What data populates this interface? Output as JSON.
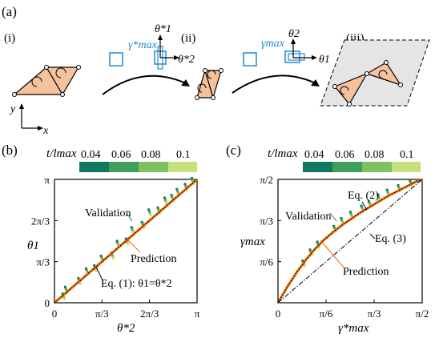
{
  "panel_labels": {
    "a": "(a)",
    "b": "(b)",
    "c": "(c)"
  },
  "panel_a": {
    "stage_labels": [
      "(i)",
      "(ii)",
      "(iii)"
    ],
    "gamma_star": "γ*max",
    "gamma": "γmax",
    "axis_theta1_star": "θ*1",
    "axis_theta2_star": "θ*2",
    "axis_theta2": "θ2",
    "axis_theta1": "θ1",
    "coord_y": "y",
    "coord_x": "x",
    "colors": {
      "tri": "#f5c29c",
      "grey": "#e5e5e5",
      "blue": "#1f8ad6"
    }
  },
  "colorbar": {
    "label": "t/lmax",
    "ticks": [
      "0.04",
      "0.06",
      "0.08",
      "0.1"
    ],
    "colors": [
      "#0f7a60",
      "#3e9e5a",
      "#7fc060",
      "#c5e27a"
    ]
  },
  "chart_data": [
    {
      "type": "line",
      "panel": "b",
      "xlabel": "θ*2",
      "ylabel": "θ1",
      "x_ticks": [
        "0",
        "π/3",
        "2π/3",
        "π"
      ],
      "y_ticks": [
        "0",
        "π/3",
        "2π/3",
        "π"
      ],
      "xlim": [
        0,
        3.1416
      ],
      "ylim": [
        0,
        3.1416
      ],
      "annotations": [
        "Validation",
        "Prediction",
        "Eq. (1): θ1=θ*2"
      ],
      "series": [
        {
          "name": "Prediction",
          "color": "#f26a00",
          "x": [
            0,
            3.1416
          ],
          "y": [
            0,
            3.1416
          ]
        },
        {
          "name": "Eq. (1)",
          "color": "#000000",
          "style": "dotted",
          "x": [
            0,
            3.1416
          ],
          "y": [
            0,
            3.1416
          ]
        }
      ],
      "validation_points": [
        {
          "x": 0.2,
          "y": 0.16
        },
        {
          "x": 0.26,
          "y": 0.33
        },
        {
          "x": 0.55,
          "y": 0.55
        },
        {
          "x": 0.72,
          "y": 0.8
        },
        {
          "x": 0.9,
          "y": 0.88
        },
        {
          "x": 1.05,
          "y": 1.12
        },
        {
          "x": 1.28,
          "y": 1.2
        },
        {
          "x": 1.4,
          "y": 1.5
        },
        {
          "x": 1.6,
          "y": 1.56
        },
        {
          "x": 1.72,
          "y": 1.85
        },
        {
          "x": 1.95,
          "y": 1.98
        },
        {
          "x": 2.1,
          "y": 2.3
        },
        {
          "x": 2.3,
          "y": 2.35
        },
        {
          "x": 2.45,
          "y": 2.6
        },
        {
          "x": 2.6,
          "y": 2.67
        },
        {
          "x": 2.72,
          "y": 2.82
        },
        {
          "x": 2.9,
          "y": 2.95
        },
        {
          "x": 3.05,
          "y": 3.1
        }
      ]
    },
    {
      "type": "line",
      "panel": "c",
      "xlabel": "γ*max",
      "ylabel": "γmax",
      "x_ticks": [
        "0",
        "π/6",
        "π/3",
        "π/2"
      ],
      "y_ticks": [
        "π/6",
        "π/3",
        "π/2"
      ],
      "xlim": [
        0,
        1.5708
      ],
      "ylim": [
        0,
        1.5708
      ],
      "annotations": [
        "Eq. (2)",
        "Validation",
        "Eq. (3)",
        "Prediction"
      ],
      "series": [
        {
          "name": "Prediction",
          "color": "#f26a00",
          "x": [
            0,
            0.1,
            0.2,
            0.3,
            0.4,
            0.5,
            0.6,
            0.7,
            0.8,
            0.9,
            1.0,
            1.1,
            1.2,
            1.3,
            1.4,
            1.5,
            1.5708
          ],
          "y": [
            0,
            0.2,
            0.38,
            0.54,
            0.68,
            0.8,
            0.9,
            0.99,
            1.07,
            1.15,
            1.22,
            1.29,
            1.36,
            1.42,
            1.48,
            1.54,
            1.5708
          ]
        },
        {
          "name": "Eq. (2)",
          "color": "#000000",
          "style": "dotted",
          "x": [
            0,
            0.1,
            0.2,
            0.3,
            0.4,
            0.5,
            0.6,
            0.7,
            0.8,
            0.9,
            1.0,
            1.1,
            1.2,
            1.3,
            1.4,
            1.5,
            1.5708
          ],
          "y": [
            0,
            0.2,
            0.38,
            0.54,
            0.68,
            0.8,
            0.9,
            0.99,
            1.07,
            1.15,
            1.22,
            1.29,
            1.36,
            1.42,
            1.48,
            1.54,
            1.5708
          ]
        },
        {
          "name": "Eq. (3)",
          "color": "#000000",
          "style": "dashdot",
          "x": [
            0,
            1.5708
          ],
          "y": [
            0,
            1.5708
          ]
        }
      ],
      "validation_points": [
        {
          "x": 0.28,
          "y": 0.5
        },
        {
          "x": 0.36,
          "y": 0.64
        },
        {
          "x": 0.44,
          "y": 0.74
        },
        {
          "x": 0.62,
          "y": 0.94
        },
        {
          "x": 0.7,
          "y": 1.04
        },
        {
          "x": 0.8,
          "y": 1.12
        },
        {
          "x": 0.92,
          "y": 1.2
        },
        {
          "x": 1.0,
          "y": 1.26
        },
        {
          "x": 1.1,
          "y": 1.34
        },
        {
          "x": 1.2,
          "y": 1.4
        },
        {
          "x": 1.32,
          "y": 1.46
        },
        {
          "x": 1.45,
          "y": 1.52
        }
      ]
    }
  ]
}
